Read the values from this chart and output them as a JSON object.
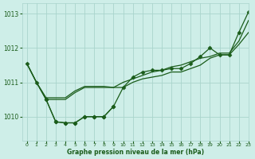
{
  "background_color": "#ceeee8",
  "grid_color": "#aad4cc",
  "line_color": "#1a5c1a",
  "text_color": "#1a5c1a",
  "xlabel": "Graphe pression niveau de la mer (hPa)",
  "xlim": [
    -0.5,
    23
  ],
  "ylim": [
    1009.3,
    1013.3
  ],
  "yticks": [
    1010,
    1011,
    1012,
    1013
  ],
  "xticks": [
    0,
    1,
    2,
    3,
    4,
    5,
    6,
    7,
    8,
    9,
    10,
    11,
    12,
    13,
    14,
    15,
    16,
    17,
    18,
    19,
    20,
    21,
    22,
    23
  ],
  "series": [
    {
      "x": [
        0,
        1,
        2,
        3,
        4,
        5,
        6,
        7,
        8,
        9,
        10,
        11,
        12,
        13,
        14,
        15,
        16,
        17,
        18,
        19,
        20,
        21,
        22,
        23
      ],
      "y": [
        1011.55,
        1011.0,
        1010.5,
        1009.85,
        1009.82,
        1009.82,
        1010.0,
        1010.0,
        1010.0,
        1010.3,
        1010.85,
        1011.15,
        1011.3,
        1011.35,
        1011.35,
        1011.4,
        1011.4,
        1011.55,
        1011.75,
        1012.0,
        1011.8,
        1011.8,
        1012.45,
        1013.05
      ],
      "marker": "D",
      "markersize": 2.5,
      "linewidth": 0.9
    },
    {
      "x": [
        0,
        1,
        2,
        3,
        4,
        5,
        6,
        7,
        8,
        9,
        10,
        11,
        12,
        13,
        14,
        15,
        16,
        17,
        18,
        19,
        20,
        21,
        22,
        23
      ],
      "y": [
        1011.55,
        1011.0,
        1010.5,
        1010.5,
        1010.5,
        1010.7,
        1010.85,
        1010.85,
        1010.85,
        1010.85,
        1010.85,
        1011.0,
        1011.1,
        1011.15,
        1011.2,
        1011.3,
        1011.3,
        1011.4,
        1011.5,
        1011.7,
        1011.8,
        1011.8,
        1012.1,
        1012.45
      ],
      "marker": null,
      "markersize": 0,
      "linewidth": 0.9
    },
    {
      "x": [
        2,
        3,
        4,
        5,
        6,
        7,
        8,
        9
      ],
      "y": [
        1010.5,
        1009.85,
        1009.82,
        1009.82,
        1010.0,
        1010.0,
        1010.0,
        1010.3
      ],
      "marker": "D",
      "markersize": 2.5,
      "linewidth": 0.9
    },
    {
      "x": [
        0,
        1,
        2,
        3,
        4,
        5,
        6,
        7,
        8,
        9,
        10,
        11,
        12,
        13,
        14,
        15,
        16,
        17,
        18,
        19,
        20,
        21,
        22,
        23
      ],
      "y": [
        1011.55,
        1011.0,
        1010.55,
        1010.55,
        1010.55,
        1010.75,
        1010.88,
        1010.88,
        1010.88,
        1010.85,
        1011.0,
        1011.1,
        1011.2,
        1011.3,
        1011.35,
        1011.45,
        1011.5,
        1011.6,
        1011.7,
        1011.75,
        1011.85,
        1011.85,
        1012.2,
        1012.8
      ],
      "marker": null,
      "markersize": 0,
      "linewidth": 0.9
    }
  ]
}
